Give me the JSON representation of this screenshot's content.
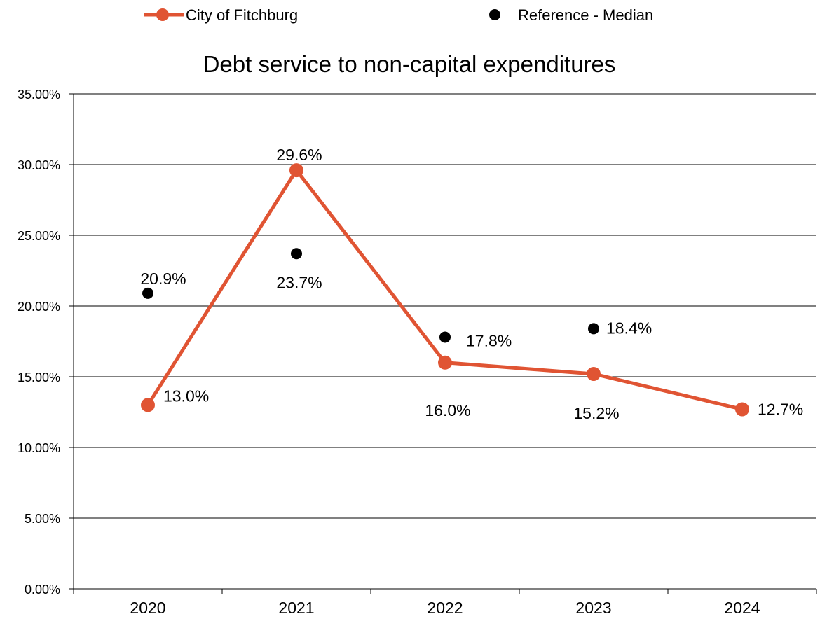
{
  "chart_data": {
    "type": "line",
    "title": "Debt service to non-capital expenditures",
    "xlabel": "",
    "ylabel": "",
    "categories": [
      "2020",
      "2021",
      "2022",
      "2023",
      "2024"
    ],
    "ylim": [
      0,
      35
    ],
    "y_ticks": [
      0,
      5,
      10,
      15,
      20,
      25,
      30,
      35
    ],
    "y_tick_labels": [
      "0.00%",
      "5.00%",
      "10.00%",
      "15.00%",
      "20.00%",
      "25.00%",
      "30.00%",
      "35.00%"
    ],
    "grid": true,
    "legend_position": "top",
    "series": [
      {
        "name": "City of Fitchburg",
        "kind": "line-with-markers",
        "color": "#e05433",
        "values": [
          13.0,
          29.6,
          16.0,
          15.2,
          12.7
        ],
        "labels": [
          "13.0%",
          "29.6%",
          "16.0%",
          "15.2%",
          "12.7%"
        ]
      },
      {
        "name": "Reference - Median",
        "kind": "markers",
        "color": "#000000",
        "values": [
          20.9,
          23.7,
          17.8,
          18.4,
          null
        ],
        "labels": [
          "20.9%",
          "23.7%",
          "17.8%",
          "18.4%",
          null
        ]
      }
    ]
  }
}
